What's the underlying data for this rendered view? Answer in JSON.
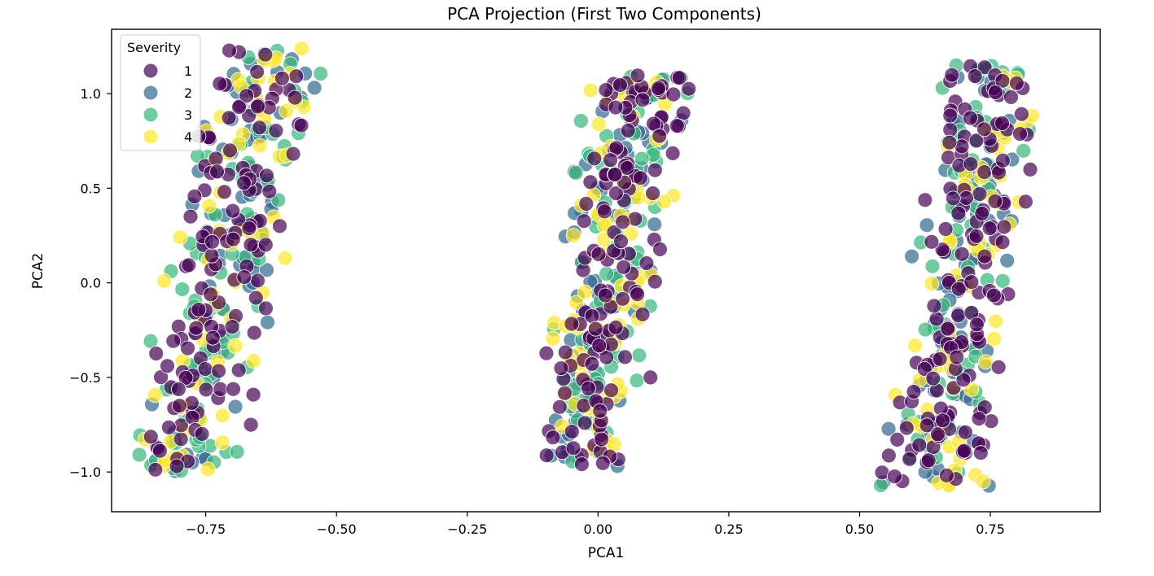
{
  "chart_data": {
    "type": "scatter",
    "title": "PCA Projection (First Two Components)",
    "xlabel": "PCA1",
    "ylabel": "PCA2",
    "xlim": [
      -0.93,
      0.96
    ],
    "ylim": [
      -1.21,
      1.34
    ],
    "x_ticks": [
      -0.75,
      -0.5,
      -0.25,
      0.0,
      0.25,
      0.5,
      0.75
    ],
    "x_tick_labels": [
      "−0.75",
      "−0.50",
      "−0.25",
      "0.00",
      "0.25",
      "0.50",
      "0.75"
    ],
    "y_ticks": [
      -1.0,
      -0.5,
      0.0,
      0.5,
      1.0
    ],
    "y_tick_labels": [
      "−1.0",
      "−0.5",
      "0.0",
      "0.5",
      "1.0"
    ],
    "grid": false,
    "legend": {
      "title": "Severity",
      "position": "top-left"
    },
    "series": [
      {
        "name": "1",
        "color": "#440154"
      },
      {
        "name": "2",
        "color": "#31688e"
      },
      {
        "name": "3",
        "color": "#35b779"
      },
      {
        "name": "4",
        "color": "#fde725"
      }
    ],
    "clusters": [
      {
        "x_range": [
          -0.86,
          -0.55
        ],
        "y_range": [
          -1.0,
          1.24
        ],
        "center_x_at_bottom": -0.79,
        "center_x_at_top": -0.63
      },
      {
        "x_range": [
          -0.15,
          0.14
        ],
        "y_range": [
          -0.98,
          1.1
        ],
        "center_x_at_bottom": -0.03,
        "center_x_at_top": 0.08
      },
      {
        "x_range": [
          0.56,
          0.86
        ],
        "y_range": [
          -1.08,
          1.16
        ],
        "center_x_at_bottom": 0.64,
        "center_x_at_top": 0.76
      }
    ]
  }
}
